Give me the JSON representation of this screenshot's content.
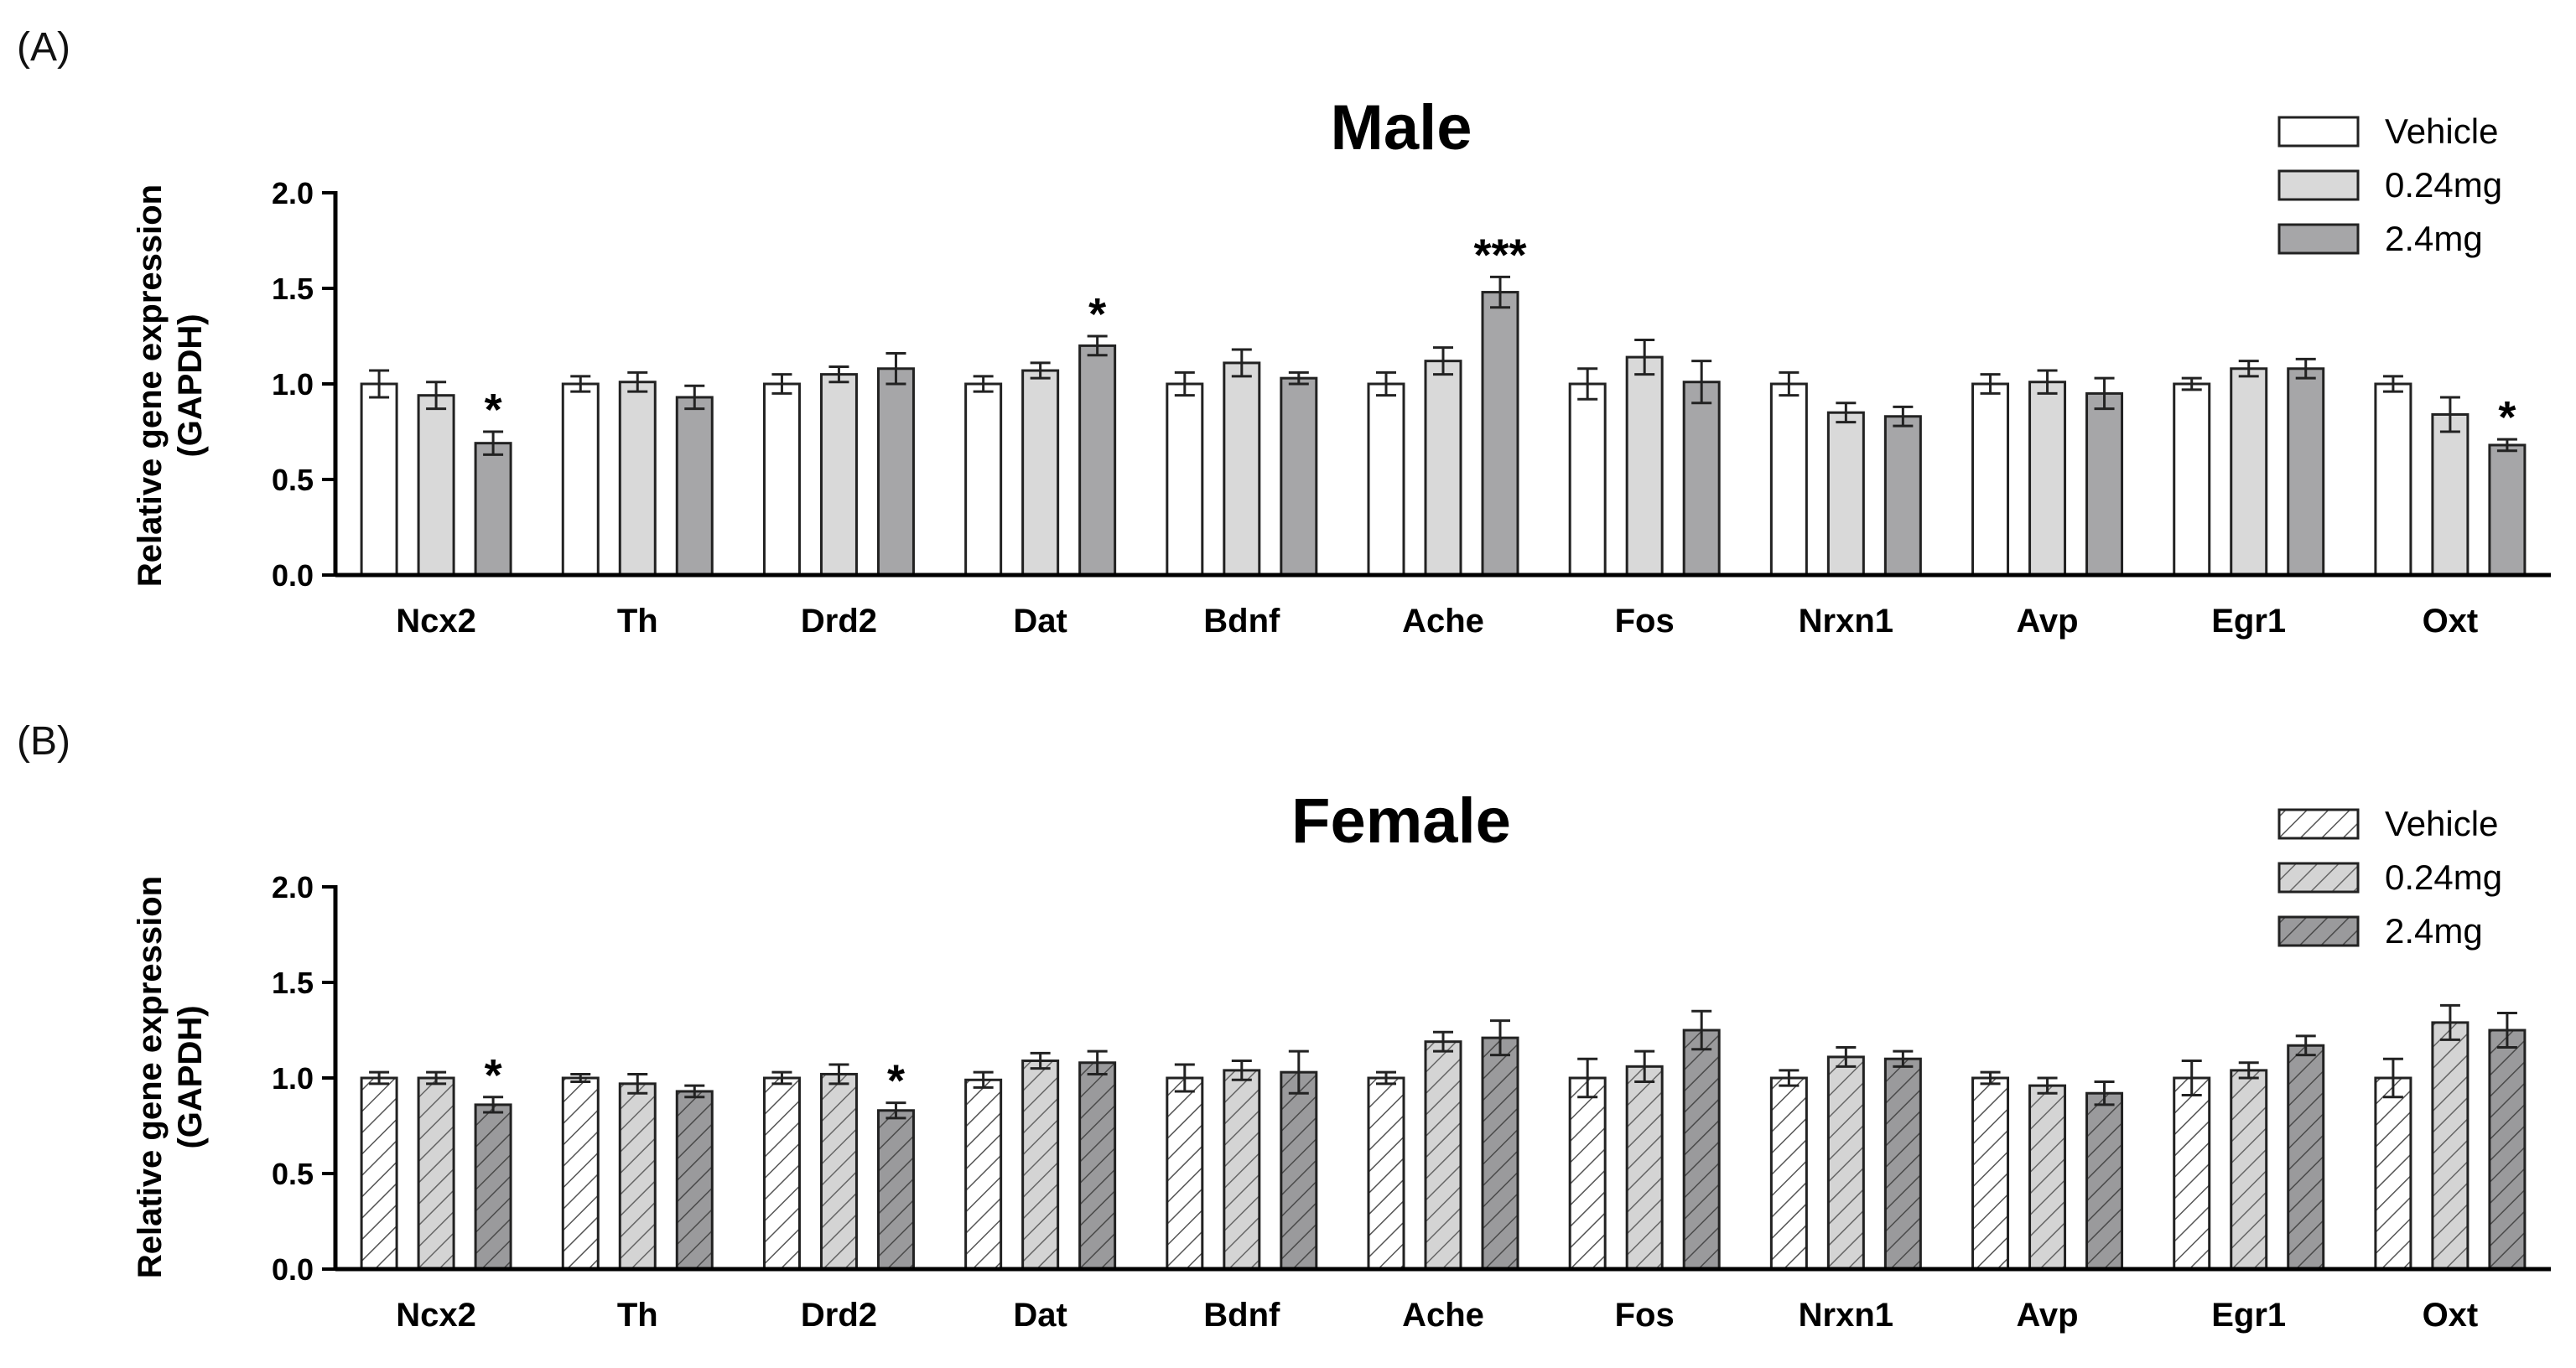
{
  "chart_data": [
    {
      "panel": "(A)",
      "type": "bar",
      "title": "Male",
      "ylabel": "Relative gene expression",
      "ylabel2": "(GAPDH)",
      "ylim": [
        0,
        2.0
      ],
      "yticks": [
        "0.0",
        "0.5",
        "1.0",
        "1.5",
        "2.0"
      ],
      "categories": [
        "Ncx2",
        "Th",
        "Drd2",
        "Dat",
        "Bdnf",
        "Ache",
        "Fos",
        "Nrxn1",
        "Avp",
        "Egr1",
        "Oxt"
      ],
      "pattern": "solid",
      "series": [
        {
          "name": "Vehicle",
          "color": "#ffffff",
          "values": [
            1.0,
            1.0,
            1.0,
            1.0,
            1.0,
            1.0,
            1.0,
            1.0,
            1.0,
            1.0,
            1.0
          ],
          "errors": [
            0.07,
            0.04,
            0.05,
            0.04,
            0.06,
            0.06,
            0.08,
            0.06,
            0.05,
            0.03,
            0.04
          ],
          "sig": [
            "",
            "",
            "",
            "",
            "",
            "",
            "",
            "",
            "",
            "",
            ""
          ]
        },
        {
          "name": "0.24mg",
          "color": "#d9d9d9",
          "values": [
            0.94,
            1.01,
            1.05,
            1.07,
            1.11,
            1.12,
            1.14,
            0.85,
            1.01,
            1.08,
            0.84
          ],
          "errors": [
            0.07,
            0.05,
            0.04,
            0.04,
            0.07,
            0.07,
            0.09,
            0.05,
            0.06,
            0.04,
            0.09
          ],
          "sig": [
            "",
            "",
            "",
            "",
            "",
            "",
            "",
            "",
            "",
            "",
            ""
          ]
        },
        {
          "name": "2.4mg",
          "color": "#a6a6a8",
          "values": [
            0.69,
            0.93,
            1.08,
            1.2,
            1.03,
            1.48,
            1.01,
            0.83,
            0.95,
            1.08,
            0.68
          ],
          "errors": [
            0.06,
            0.06,
            0.08,
            0.05,
            0.03,
            0.08,
            0.11,
            0.05,
            0.08,
            0.05,
            0.03
          ],
          "sig": [
            "*",
            "",
            "",
            "*",
            "",
            "***",
            "",
            "",
            "",
            "",
            "*"
          ]
        }
      ]
    },
    {
      "panel": "(B)",
      "type": "bar",
      "title": "Female",
      "ylabel": "Relative gene expression",
      "ylabel2": "(GAPDH)",
      "ylim": [
        0,
        2.0
      ],
      "yticks": [
        "0.0",
        "0.5",
        "1.0",
        "1.5",
        "2.0"
      ],
      "categories": [
        "Ncx2",
        "Th",
        "Drd2",
        "Dat",
        "Bdnf",
        "Ache",
        "Fos",
        "Nrxn1",
        "Avp",
        "Egr1",
        "Oxt"
      ],
      "pattern": "hatched",
      "series": [
        {
          "name": "Vehicle",
          "color": "#ffffff",
          "values": [
            1.0,
            1.0,
            1.0,
            0.99,
            1.0,
            1.0,
            1.0,
            1.0,
            1.0,
            1.0,
            1.0
          ],
          "errors": [
            0.03,
            0.02,
            0.03,
            0.04,
            0.07,
            0.03,
            0.1,
            0.04,
            0.03,
            0.09,
            0.1
          ],
          "sig": [
            "",
            "",
            "",
            "",
            "",
            "",
            "",
            "",
            "",
            "",
            ""
          ]
        },
        {
          "name": "0.24mg",
          "color": "#d9d9d9",
          "values": [
            1.0,
            0.97,
            1.02,
            1.09,
            1.04,
            1.19,
            1.06,
            1.11,
            0.96,
            1.04,
            1.29
          ],
          "errors": [
            0.03,
            0.05,
            0.05,
            0.04,
            0.05,
            0.05,
            0.08,
            0.05,
            0.04,
            0.04,
            0.09
          ],
          "sig": [
            "",
            "",
            "",
            "",
            "",
            "",
            "",
            "",
            "",
            "",
            ""
          ]
        },
        {
          "name": "2.4mg",
          "color": "#8c8c8e",
          "values": [
            0.86,
            0.93,
            0.83,
            1.08,
            1.03,
            1.21,
            1.25,
            1.1,
            0.92,
            1.17,
            1.25
          ],
          "errors": [
            0.04,
            0.03,
            0.04,
            0.06,
            0.11,
            0.09,
            0.1,
            0.04,
            0.06,
            0.05,
            0.09
          ],
          "sig": [
            "*",
            "",
            "*",
            "",
            "",
            "",
            "",
            "",
            "",
            "",
            ""
          ]
        }
      ]
    }
  ]
}
